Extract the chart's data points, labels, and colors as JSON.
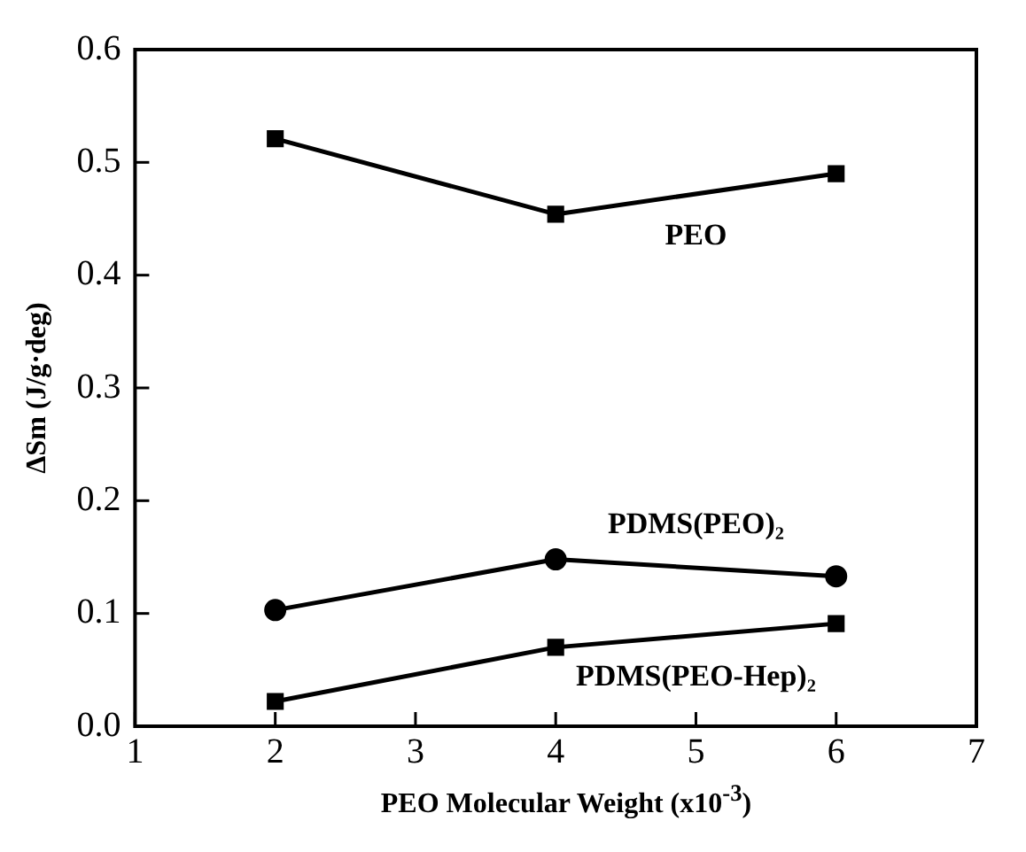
{
  "chart_data": {
    "type": "line",
    "xlabel": "PEO Molecular Weight (x10$^{-3}$)",
    "ylabel": "ΔSm (J/g·deg)",
    "x": [
      2,
      4,
      6
    ],
    "series": [
      {
        "name": "PEO",
        "color": "#000000",
        "marker": "square",
        "values": [
          0.521,
          0.454,
          0.49
        ]
      },
      {
        "name": "PDMS(PEO)₂",
        "color": "#000000",
        "marker": "circle",
        "values": [
          0.103,
          0.148,
          0.133
        ]
      },
      {
        "name": "PDMS(PEO-Hep)₂",
        "color": "#000000",
        "marker": "square",
        "values": [
          0.022,
          0.07,
          0.091
        ]
      }
    ],
    "xlim": [
      1,
      7
    ],
    "xticks": [
      1,
      2,
      3,
      4,
      5,
      6,
      7
    ],
    "ylim": [
      0,
      0.6
    ],
    "yticks": [
      {
        "value": 0,
        "label": "0.0"
      },
      0.1,
      0.2,
      0.3,
      0.4,
      0.5,
      0.6
    ],
    "grid": false,
    "legend": false,
    "line_style": "solid"
  }
}
